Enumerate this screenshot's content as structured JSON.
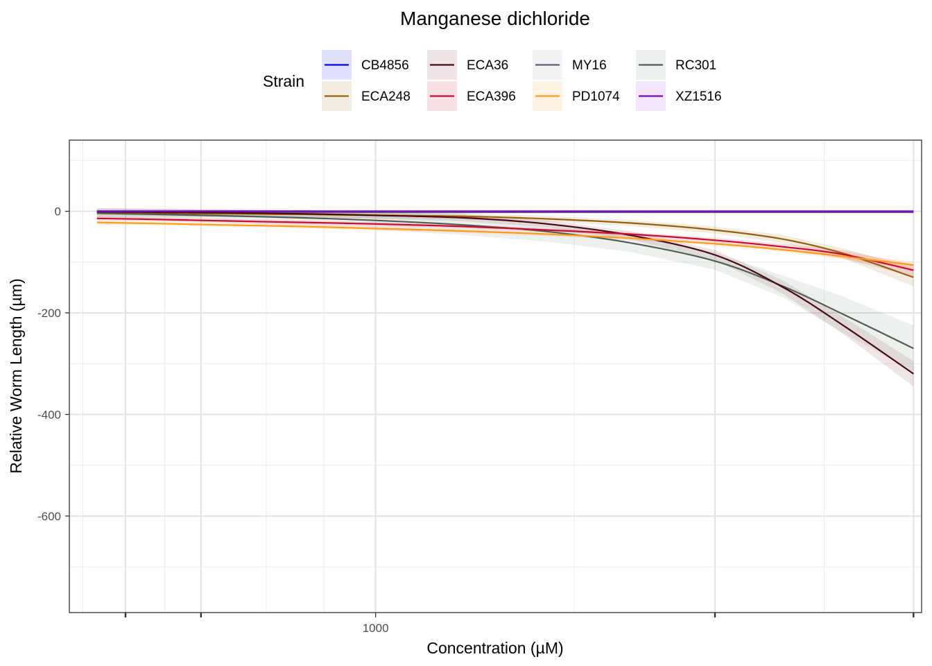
{
  "chart_data": {
    "type": "line",
    "title": "Manganese dichloride",
    "xlabel": "Concentration (µM)",
    "ylabel": "Relative Worm Length (µm)",
    "x_scale": "log10",
    "xlim": [
      535,
      3050
    ],
    "ylim": [
      -790,
      140
    ],
    "x_ticks": [
      {
        "value": 1000,
        "label": "1000"
      }
    ],
    "y_ticks": [
      {
        "value": 0,
        "label": "0"
      },
      {
        "value": -200,
        "label": "-200"
      },
      {
        "value": -400,
        "label": "-400"
      },
      {
        "value": -600,
        "label": "-600"
      }
    ],
    "x": [
      566,
      635,
      735,
      862,
      1000,
      1200,
      1420,
      1680,
      2000,
      2300,
      2600,
      3000
    ],
    "series": [
      {
        "name": "CB4856",
        "color": "#0000ee",
        "band_color": "#0000ff",
        "values": [
          0,
          0,
          0,
          0,
          0,
          0,
          0,
          0,
          0,
          0,
          0,
          0
        ]
      },
      {
        "name": "ECA248",
        "color": "#98600b",
        "band_color": "#98600b",
        "values": [
          -4,
          -4,
          -5,
          -6,
          -8,
          -10,
          -15,
          -23,
          -37,
          -55,
          -83,
          -130
        ],
        "band": [
          [
            -12,
            4
          ],
          [
            -12,
            4
          ],
          [
            -12,
            3
          ],
          [
            -12,
            1
          ],
          [
            -14,
            0
          ],
          [
            -16,
            -4
          ],
          [
            -21,
            -9
          ],
          [
            -29,
            -17
          ],
          [
            -44,
            -30
          ],
          [
            -63,
            -47
          ],
          [
            -93,
            -73
          ],
          [
            -148,
            -112
          ]
        ]
      },
      {
        "name": "ECA36",
        "color": "#4a0810",
        "band_color": "#7a2030",
        "values": [
          -1,
          -2,
          -3,
          -5,
          -8,
          -13,
          -25,
          -47,
          -86,
          -150,
          -225,
          -320
        ],
        "band": [
          [
            -8,
            6
          ],
          [
            -9,
            5
          ],
          [
            -10,
            4
          ],
          [
            -12,
            2
          ],
          [
            -15,
            -1
          ],
          [
            -20,
            -6
          ],
          [
            -32,
            -18
          ],
          [
            -55,
            -39
          ],
          [
            -96,
            -76
          ],
          [
            -163,
            -137
          ],
          [
            -242,
            -208
          ],
          [
            -345,
            -295
          ]
        ]
      },
      {
        "name": "ECA396",
        "color": "#cc0a2e",
        "band_color": "#cc0a2e",
        "values": [
          -14,
          -16,
          -19,
          -22,
          -25,
          -30,
          -37,
          -45,
          -57,
          -70,
          -85,
          -116
        ],
        "band": [
          [
            -19,
            -9
          ],
          [
            -20,
            -12
          ],
          [
            -23,
            -15
          ],
          [
            -26,
            -18
          ],
          [
            -29,
            -21
          ],
          [
            -34,
            -26
          ],
          [
            -41,
            -33
          ],
          [
            -49,
            -41
          ],
          [
            -62,
            -52
          ],
          [
            -76,
            -64
          ],
          [
            -93,
            -77
          ],
          [
            -128,
            -104
          ]
        ]
      },
      {
        "name": "MY16",
        "color": "#5b5b75",
        "band_color": "#9a9ab0",
        "values": [
          -2,
          -2,
          -2,
          -2,
          -2,
          -2,
          -2,
          -2,
          -2,
          -2,
          -2,
          -2
        ]
      },
      {
        "name": "PD1074",
        "color": "#ff9a1a",
        "band_color": "#ff9a1a",
        "values": [
          -22,
          -24,
          -27,
          -30,
          -34,
          -39,
          -45,
          -53,
          -64,
          -76,
          -89,
          -106
        ],
        "band": [
          [
            -26,
            -18
          ],
          [
            -28,
            -20
          ],
          [
            -31,
            -23
          ],
          [
            -34,
            -26
          ],
          [
            -38,
            -30
          ],
          [
            -43,
            -35
          ],
          [
            -49,
            -41
          ],
          [
            -57,
            -49
          ],
          [
            -68,
            -60
          ],
          [
            -81,
            -71
          ],
          [
            -95,
            -83
          ],
          [
            -114,
            -98
          ]
        ]
      },
      {
        "name": "RC301",
        "color": "#4f5e55",
        "band_color": "#6d8a72",
        "values": [
          -4,
          -6,
          -9,
          -13,
          -18,
          -27,
          -40,
          -62,
          -98,
          -148,
          -203,
          -270
        ],
        "band": [
          [
            -12,
            6
          ],
          [
            -16,
            5
          ],
          [
            -22,
            3
          ],
          [
            -30,
            1
          ],
          [
            -37,
            -2
          ],
          [
            -47,
            -8
          ],
          [
            -60,
            -22
          ],
          [
            -80,
            -44
          ],
          [
            -115,
            -81
          ],
          [
            -170,
            -127
          ],
          [
            -240,
            -168
          ],
          [
            -315,
            -225
          ]
        ]
      },
      {
        "name": "XZ1516",
        "color": "#7a05cc",
        "band_color": "#a030ee",
        "values": [
          0,
          0,
          0,
          0,
          0,
          0,
          0,
          0,
          0,
          0,
          0,
          0
        ]
      }
    ],
    "legend": {
      "title": "Strain",
      "position": "top"
    },
    "grid": true
  }
}
